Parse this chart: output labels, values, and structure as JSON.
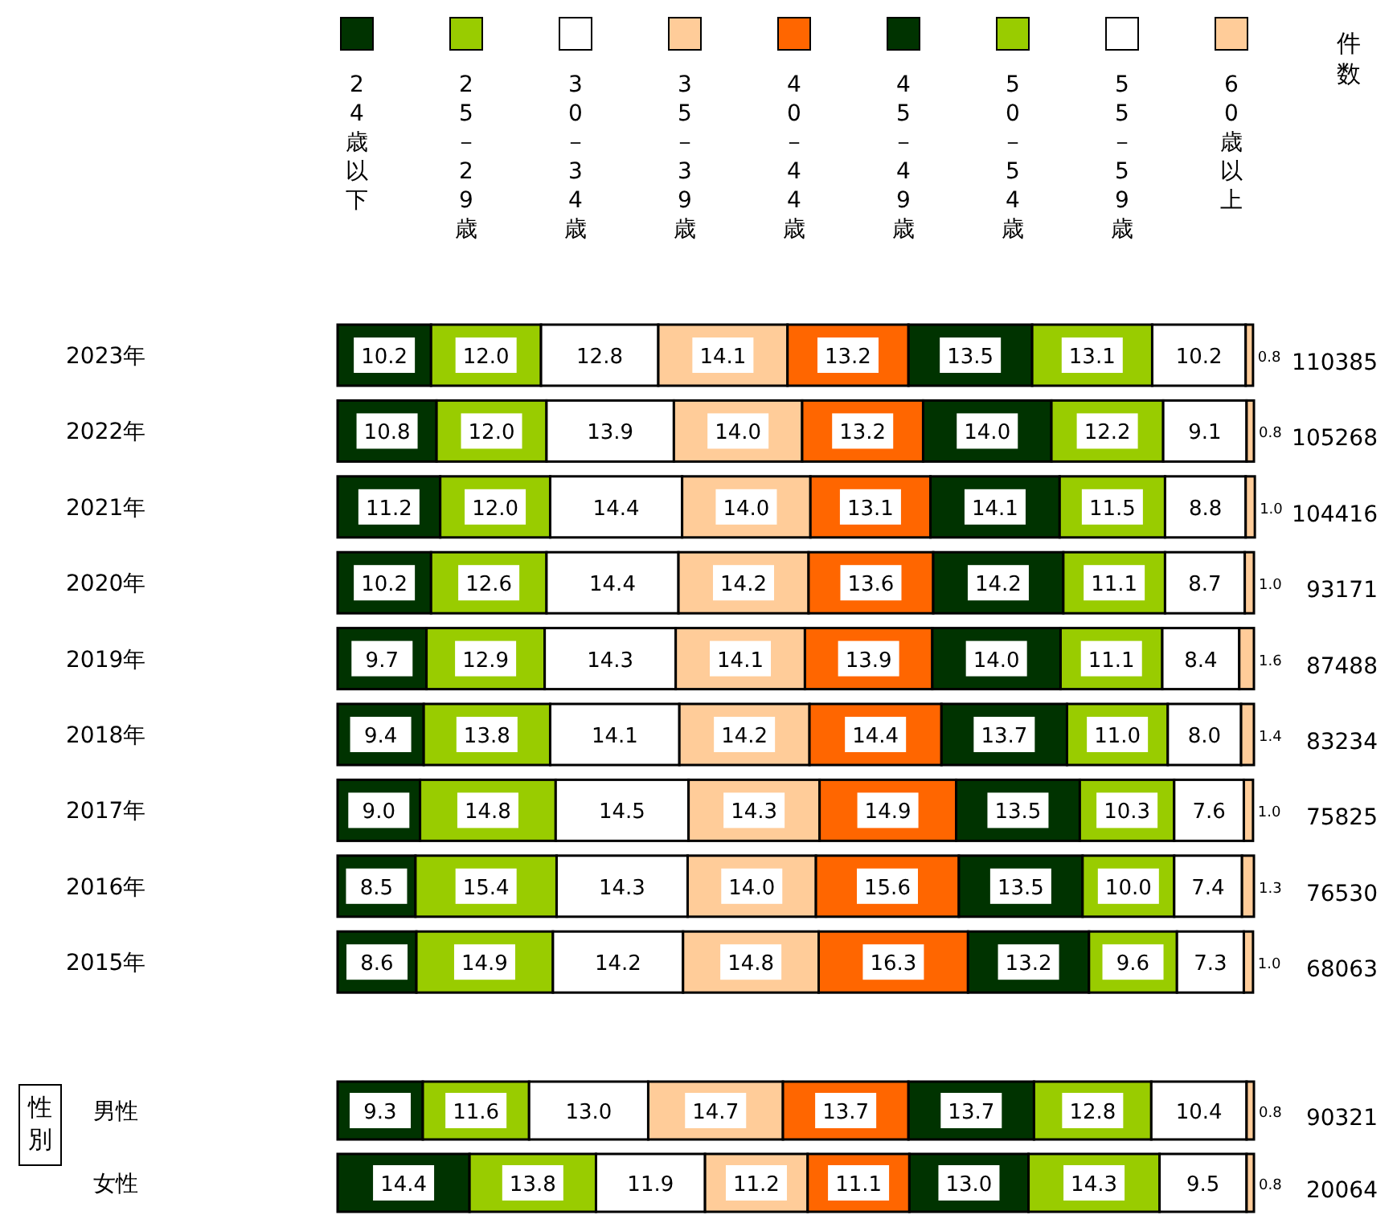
{
  "chart_data": [
    {
      "type": "bar",
      "orientation": "horizontal",
      "stacked": true,
      "legend": "top",
      "xlim": [
        0,
        100
      ],
      "categories": [
        "2023年",
        "2022年",
        "2021年",
        "2020年",
        "2019年",
        "2018年",
        "2017年",
        "2016年",
        "2015年"
      ],
      "series": [
        {
          "name": "24歳以下",
          "color": "#003300",
          "values": [
            10.2,
            10.8,
            11.2,
            10.2,
            9.7,
            9.4,
            9.0,
            8.5,
            8.6
          ],
          "value_labels": [
            "10.2",
            "10.8",
            "11.2",
            "10.2",
            "9.7",
            "9.4",
            "9.0",
            "8.5",
            "8.6"
          ]
        },
        {
          "name": "25－29歳",
          "color": "#99cc00",
          "values": [
            12.0,
            12.0,
            12.0,
            12.6,
            12.9,
            13.8,
            14.8,
            15.4,
            14.9
          ],
          "value_labels": [
            "12.0",
            "12.0",
            "12.0",
            "12.6",
            "12.9",
            "13.8",
            "14.8",
            "15.4",
            "14.9"
          ]
        },
        {
          "name": "30－34歳",
          "color": "#ffffff",
          "values": [
            12.8,
            13.9,
            14.4,
            14.4,
            14.3,
            14.1,
            14.5,
            14.3,
            14.2
          ],
          "value_labels": [
            "12.8",
            "13.9",
            "14.4",
            "14.4",
            "14.3",
            "14.1",
            "14.5",
            "14.3",
            "14.2"
          ]
        },
        {
          "name": "35－39歳",
          "color": "#ffcc99",
          "values": [
            14.1,
            14.0,
            14.0,
            14.2,
            14.1,
            14.2,
            14.3,
            14.0,
            14.8
          ],
          "value_labels": [
            "14.1",
            "14.0",
            "14.0",
            "14.2",
            "14.1",
            "14.2",
            "14.3",
            "14.0",
            "14.8"
          ]
        },
        {
          "name": "40－44歳",
          "color": "#ff6600",
          "values": [
            13.2,
            13.2,
            13.1,
            13.6,
            13.9,
            14.4,
            14.9,
            15.6,
            16.3
          ],
          "value_labels": [
            "13.2",
            "13.2",
            "13.1",
            "13.6",
            "13.9",
            "14.4",
            "14.9",
            "15.6",
            "16.3"
          ]
        },
        {
          "name": "45－49歳",
          "color": "#003300",
          "values": [
            13.5,
            14.0,
            14.1,
            14.2,
            14.0,
            13.7,
            13.5,
            13.5,
            13.2
          ],
          "value_labels": [
            "13.5",
            "14.0",
            "14.1",
            "14.2",
            "14.0",
            "13.7",
            "13.5",
            "13.5",
            "13.2"
          ]
        },
        {
          "name": "50－54歳",
          "color": "#99cc00",
          "values": [
            13.1,
            12.2,
            11.5,
            11.1,
            11.1,
            11.0,
            10.3,
            10.0,
            9.6
          ],
          "value_labels": [
            "13.1",
            "12.2",
            "11.5",
            "11.1",
            "11.1",
            "11.0",
            "10.3",
            "10.0",
            "9.6"
          ]
        },
        {
          "name": "55－59歳",
          "color": "#ffffff",
          "values": [
            10.2,
            9.1,
            8.8,
            8.7,
            8.4,
            8.0,
            7.6,
            7.4,
            7.3
          ],
          "value_labels": [
            "10.2",
            "9.1",
            "8.8",
            "8.7",
            "8.4",
            "8.0",
            "7.6",
            "7.4",
            "7.3"
          ]
        },
        {
          "name": "60歳以上",
          "color": "#ffcc99",
          "values": [
            0.8,
            0.8,
            1.0,
            1.0,
            1.6,
            1.4,
            1.0,
            1.3,
            1.0
          ],
          "value_labels": [
            "0.8",
            "0.8",
            "1.0",
            "1.0",
            "1.6",
            "1.4",
            "1.0",
            "1.3",
            "1.0"
          ]
        }
      ],
      "annotations": [
        "件数",
        "110385",
        "105268",
        "104416",
        "93171",
        "87488",
        "83234",
        "75825",
        "76530",
        "68063"
      ]
    },
    {
      "type": "bar",
      "orientation": "horizontal",
      "stacked": true,
      "xlim": [
        0,
        100
      ],
      "ylabel": "性別",
      "categories": [
        "男性",
        "女性"
      ],
      "series": [
        {
          "color": "#003300",
          "values": [
            9.3,
            14.4
          ],
          "value_labels": [
            "9.3",
            "14.4"
          ]
        },
        {
          "color": "#99cc00",
          "values": [
            11.6,
            13.8
          ],
          "value_labels": [
            "11.6",
            "13.8"
          ]
        },
        {
          "color": "#ffffff",
          "values": [
            13.0,
            11.9
          ],
          "value_labels": [
            "13.0",
            "11.9"
          ]
        },
        {
          "color": "#ffcc99",
          "values": [
            14.7,
            11.2
          ],
          "value_labels": [
            "14.7",
            "11.2"
          ]
        },
        {
          "color": "#ff6600",
          "values": [
            13.7,
            11.1
          ],
          "value_labels": [
            "13.7",
            "11.1"
          ]
        },
        {
          "color": "#003300",
          "values": [
            13.7,
            13.0
          ],
          "value_labels": [
            "13.7",
            "13.0"
          ]
        },
        {
          "color": "#99cc00",
          "values": [
            12.8,
            14.3
          ],
          "value_labels": [
            "12.8",
            "14.3"
          ]
        },
        {
          "color": "#ffffff",
          "values": [
            10.4,
            9.5
          ],
          "value_labels": [
            "10.4",
            "9.5"
          ]
        },
        {
          "color": "#ffcc99",
          "values": [
            0.8,
            0.8
          ],
          "value_labels": [
            "0.8",
            "0.8"
          ]
        }
      ],
      "annotations": [
        "90321",
        "20064"
      ]
    }
  ]
}
